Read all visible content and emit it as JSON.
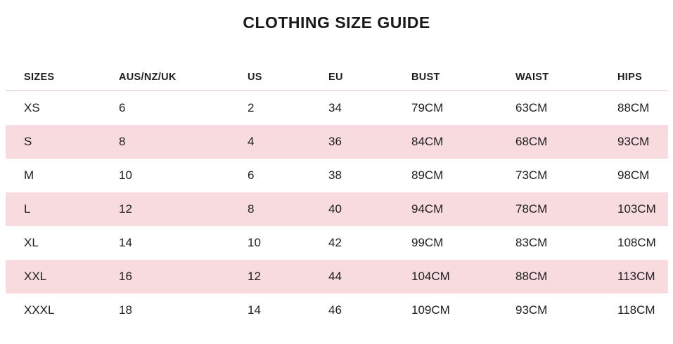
{
  "title": "CLOTHING SIZE GUIDE",
  "colors": {
    "row_highlight_pink": "#f8dbdf",
    "header_divider": "#ece0dd",
    "text": "#1e1e1e",
    "background": "#ffffff"
  },
  "table": {
    "headers": [
      "SIZES",
      "AUS/NZ/UK",
      "US",
      "EU",
      "BUST",
      "WAIST",
      "HIPS"
    ],
    "rows": [
      [
        "XS",
        "6",
        "2",
        "34",
        "79CM",
        "63CM",
        "88CM"
      ],
      [
        "S",
        "8",
        "4",
        "36",
        "84CM",
        "68CM",
        "93CM"
      ],
      [
        "M",
        "10",
        "6",
        "38",
        "89CM",
        "73CM",
        "98CM"
      ],
      [
        "L",
        "12",
        "8",
        "40",
        "94CM",
        "78CM",
        "103CM"
      ],
      [
        "XL",
        "14",
        "10",
        "42",
        "99CM",
        "83CM",
        "108CM"
      ],
      [
        "XXL",
        "16",
        "12",
        "44",
        "104CM",
        "88CM",
        "113CM"
      ],
      [
        "XXXL",
        "18",
        "14",
        "46",
        "109CM",
        "93CM",
        "118CM"
      ]
    ]
  }
}
